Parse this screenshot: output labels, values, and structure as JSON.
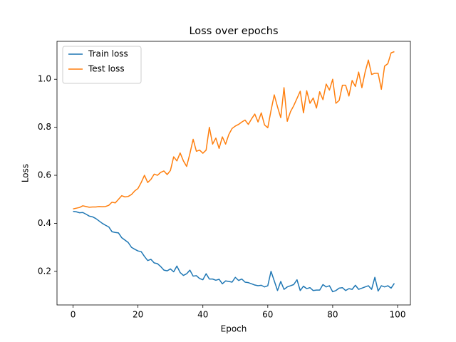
{
  "chart_data": {
    "type": "line",
    "title": "Loss over epochs",
    "x_label": "Epoch",
    "y_label": "Loss",
    "x": [
      0,
      1,
      2,
      3,
      4,
      5,
      6,
      7,
      8,
      9,
      10,
      11,
      12,
      13,
      14,
      15,
      16,
      17,
      18,
      19,
      20,
      21,
      22,
      23,
      24,
      25,
      26,
      27,
      28,
      29,
      30,
      31,
      32,
      33,
      34,
      35,
      36,
      37,
      38,
      39,
      40,
      41,
      42,
      43,
      44,
      45,
      46,
      47,
      48,
      49,
      50,
      51,
      52,
      53,
      54,
      55,
      56,
      57,
      58,
      59,
      60,
      61,
      62,
      63,
      64,
      65,
      66,
      67,
      68,
      69,
      70,
      71,
      72,
      73,
      74,
      75,
      76,
      77,
      78,
      79,
      80,
      81,
      82,
      83,
      84,
      85,
      86,
      87,
      88,
      89,
      90,
      91,
      92,
      93,
      94,
      95,
      96,
      97,
      98,
      99
    ],
    "series": [
      {
        "name": "Train loss",
        "color": "#1f77b4",
        "values": [
          0.45,
          0.448,
          0.444,
          0.445,
          0.438,
          0.43,
          0.427,
          0.42,
          0.41,
          0.4,
          0.392,
          0.385,
          0.365,
          0.362,
          0.36,
          0.34,
          0.33,
          0.32,
          0.3,
          0.292,
          0.285,
          0.282,
          0.262,
          0.245,
          0.25,
          0.235,
          0.232,
          0.22,
          0.205,
          0.202,
          0.21,
          0.198,
          0.222,
          0.195,
          0.183,
          0.19,
          0.205,
          0.18,
          0.182,
          0.17,
          0.165,
          0.19,
          0.168,
          0.168,
          0.163,
          0.167,
          0.148,
          0.16,
          0.158,
          0.155,
          0.175,
          0.162,
          0.168,
          0.155,
          0.153,
          0.148,
          0.143,
          0.14,
          0.142,
          0.135,
          0.14,
          0.2,
          0.16,
          0.12,
          0.158,
          0.125,
          0.135,
          0.14,
          0.145,
          0.165,
          0.12,
          0.138,
          0.128,
          0.132,
          0.12,
          0.122,
          0.122,
          0.145,
          0.135,
          0.14,
          0.115,
          0.12,
          0.13,
          0.132,
          0.12,
          0.128,
          0.125,
          0.142,
          0.125,
          0.13,
          0.135,
          0.14,
          0.125,
          0.175,
          0.118,
          0.14,
          0.135,
          0.14,
          0.13,
          0.15
        ]
      },
      {
        "name": "Test loss",
        "color": "#ff7f0e",
        "values": [
          0.46,
          0.463,
          0.466,
          0.473,
          0.47,
          0.467,
          0.468,
          0.468,
          0.47,
          0.469,
          0.47,
          0.475,
          0.488,
          0.485,
          0.5,
          0.515,
          0.51,
          0.512,
          0.52,
          0.535,
          0.545,
          0.57,
          0.6,
          0.57,
          0.583,
          0.605,
          0.6,
          0.612,
          0.618,
          0.603,
          0.62,
          0.677,
          0.66,
          0.693,
          0.66,
          0.637,
          0.69,
          0.75,
          0.7,
          0.705,
          0.692,
          0.705,
          0.8,
          0.73,
          0.755,
          0.712,
          0.76,
          0.73,
          0.77,
          0.795,
          0.805,
          0.812,
          0.822,
          0.83,
          0.812,
          0.835,
          0.855,
          0.822,
          0.86,
          0.81,
          0.798,
          0.87,
          0.935,
          0.885,
          0.84,
          0.965,
          0.825,
          0.865,
          0.89,
          0.92,
          0.95,
          0.86,
          0.952,
          0.9,
          0.922,
          0.88,
          0.948,
          0.915,
          0.98,
          0.955,
          1.0,
          0.9,
          0.912,
          0.975,
          0.975,
          0.93,
          0.995,
          0.97,
          1.03,
          0.965,
          1.03,
          1.08,
          1.02,
          1.025,
          1.025,
          0.958,
          1.055,
          1.065,
          1.11,
          1.115
        ]
      }
    ],
    "xlim": [
      -4.95,
      103.95
    ],
    "xticks": [
      0,
      20,
      40,
      60,
      80,
      100
    ],
    "ylim": [
      0.06,
      1.158
    ],
    "yticks": [
      0.2,
      0.4,
      0.6,
      0.8,
      {
        "value": 1,
        "label": "1.0"
      }
    ],
    "grid": false,
    "legend": "upper left"
  }
}
